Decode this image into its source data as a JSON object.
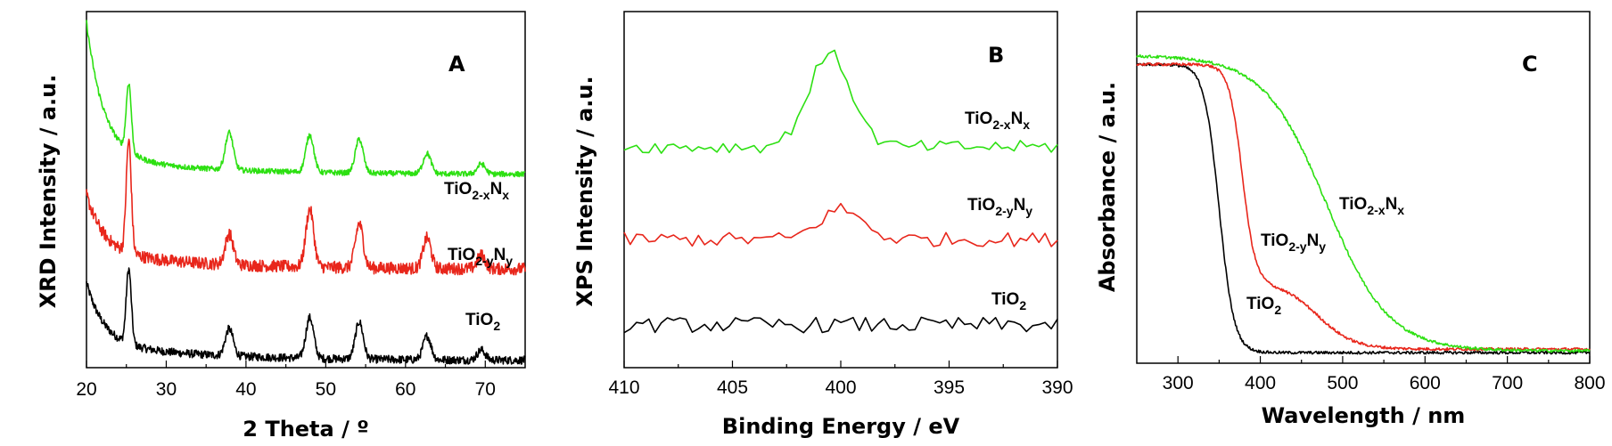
{
  "chart_data": [
    {
      "panel": "A",
      "type": "line",
      "xlabel": "2 Theta / º",
      "ylabel": "XRD Intensity / a.u.",
      "xlim": [
        20,
        75
      ],
      "xticks": [
        20,
        30,
        40,
        50,
        60,
        70
      ],
      "yticks_shown": false,
      "peaks": [
        25.3,
        37.9,
        48.0,
        54.2,
        62.7,
        69.5
      ],
      "series": [
        {
          "name": "TiO2",
          "label_main": "TiO",
          "label_sub1": "2",
          "label_mid": "",
          "label_sub2": "",
          "color": "#000000",
          "baseline": 0.0,
          "start_rise": 0.18,
          "peak_heights": [
            0.22,
            0.08,
            0.12,
            0.11,
            0.07,
            0.03
          ],
          "noise": 0.012
        },
        {
          "name": "TiO2-yNy",
          "label_main": "TiO",
          "label_sub1": "2-y",
          "label_mid": "N",
          "label_sub2": "y",
          "color": "#e8261b",
          "baseline": 0.27,
          "start_rise": 0.17,
          "peak_heights": [
            0.33,
            0.09,
            0.17,
            0.13,
            0.09,
            0.04
          ],
          "noise": 0.018
        },
        {
          "name": "TiO2-xNx",
          "label_main": "TiO",
          "label_sub1": "2-x",
          "label_mid": "N",
          "label_sub2": "x",
          "color": "#2de012",
          "baseline": 0.55,
          "start_rise": 0.4,
          "peak_heights": [
            0.2,
            0.11,
            0.11,
            0.1,
            0.06,
            0.03
          ],
          "noise": 0.008
        }
      ]
    },
    {
      "panel": "B",
      "type": "line",
      "xlabel": "Binding Energy / eV",
      "ylabel": "XPS Intensity / a.u.",
      "xlim": [
        410,
        390
      ],
      "xticks": [
        410,
        405,
        400,
        395,
        390
      ],
      "yticks_shown": false,
      "series": [
        {
          "name": "TiO2",
          "label_main": "TiO",
          "label_sub1": "2",
          "label_mid": "",
          "label_sub2": "",
          "color": "#000000",
          "baseline": 0.12,
          "peak_center": 400.5,
          "peak_height": 0.0,
          "noise": 0.022
        },
        {
          "name": "TiO2-yNy",
          "label_main": "TiO",
          "label_sub1": "2-y",
          "label_mid": "N",
          "label_sub2": "y",
          "color": "#e8261b",
          "baseline": 0.36,
          "peak_center": 400.0,
          "peak_height": 0.085,
          "noise": 0.02
        },
        {
          "name": "TiO2-xNx",
          "label_main": "TiO",
          "label_sub1": "2-x",
          "label_mid": "N",
          "label_sub2": "x",
          "color": "#2de012",
          "baseline": 0.62,
          "peak_center": 400.5,
          "peak_height": 0.26,
          "noise": 0.018
        }
      ]
    },
    {
      "panel": "C",
      "type": "line",
      "xlabel": "Wavelength / nm",
      "ylabel": "Absorbance / a.u.",
      "xlim": [
        250,
        800
      ],
      "xticks": [
        300,
        400,
        500,
        600,
        700,
        800
      ],
      "yticks_shown": false,
      "series": [
        {
          "name": "TiO2",
          "label_main": "TiO",
          "label_sub1": "2",
          "label_mid": "",
          "label_sub2": "",
          "color": "#000000",
          "edges": [
            {
              "center": 350,
              "width": 9,
              "height": 0.82
            }
          ],
          "floor": 0.03
        },
        {
          "name": "TiO2-yNy",
          "label_main": "TiO",
          "label_sub1": "2-y",
          "label_mid": "N",
          "label_sub2": "y",
          "color": "#e8261b",
          "edges": [
            {
              "center": 378,
              "width": 8,
              "height": 0.62
            },
            {
              "center": 470,
              "width": 22,
              "height": 0.19
            }
          ],
          "floor": 0.04
        },
        {
          "name": "TiO2-xNx",
          "label_main": "TiO",
          "label_sub1": "2-x",
          "label_mid": "N",
          "label_sub2": "x",
          "color": "#2de012",
          "edges": [
            {
              "center": 480,
              "width": 38,
              "height": 0.84
            }
          ],
          "floor": 0.035
        }
      ]
    }
  ]
}
